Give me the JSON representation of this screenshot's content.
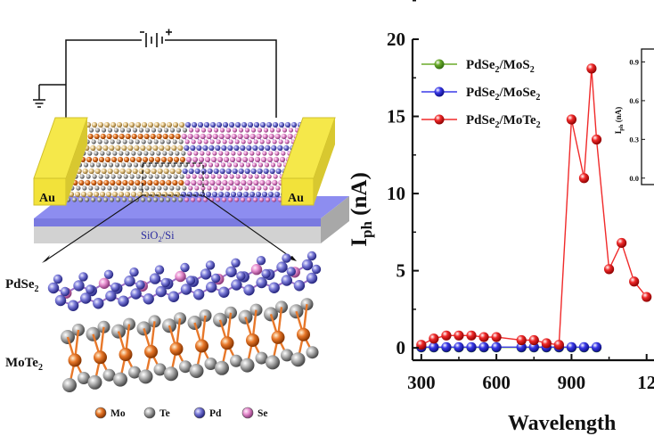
{
  "schematic": {
    "electrode_left": "Au",
    "electrode_right": "Au",
    "substrate": "SiO",
    "substrate_sub": "2",
    "substrate_tail": "/Si",
    "top_layer_label": "PdSe",
    "top_layer_sub": "2",
    "bottom_layer_label": "MoTe",
    "bottom_layer_sub": "2",
    "atom_legend": [
      {
        "symbol": "Mo",
        "color": "#e8782a"
      },
      {
        "symbol": "Te",
        "color": "#a8a8a8"
      },
      {
        "symbol": "Pd",
        "color": "#7a7ad8"
      },
      {
        "symbol": "Se",
        "color": "#e890d0"
      }
    ]
  },
  "chart_data": {
    "type": "line",
    "ylabel_main": "I",
    "ylabel_sub": "ph",
    "ylabel_unit": " (nA)",
    "xlabel": "Wavelength",
    "xlim": [
      265,
      1290
    ],
    "ylim": [
      -0.8,
      20
    ],
    "yticks": [
      "0",
      "5",
      "10",
      "15",
      "20"
    ],
    "xticks": [
      "300",
      "600",
      "900",
      "12"
    ],
    "series": [
      {
        "name_main": "PdSe",
        "name_sub1": "2",
        "name_mid": "/MoS",
        "name_sub2": "2",
        "color": "#6aaa2a",
        "dark": "#2f6b10",
        "x": [
          300,
          350,
          400,
          450,
          500,
          550,
          600,
          700,
          750,
          800,
          850,
          900,
          950,
          1000
        ],
        "y": [
          0.03,
          0.03,
          0.03,
          0.03,
          0.03,
          0.03,
          0.03,
          0.03,
          0.03,
          0.03,
          0.03,
          0.03,
          0.03,
          0.03
        ]
      },
      {
        "name_main": "PdSe",
        "name_sub1": "2",
        "name_mid": "/MoSe",
        "name_sub2": "2",
        "color": "#3a3ae8",
        "dark": "#0c0c80",
        "x": [
          300,
          350,
          400,
          450,
          500,
          550,
          600,
          700,
          750,
          800,
          850,
          900,
          950,
          1000
        ],
        "y": [
          0.05,
          0.05,
          0.05,
          0.05,
          0.05,
          0.05,
          0.05,
          0.05,
          0.05,
          0.05,
          0.05,
          0.05,
          0.05,
          0.05
        ]
      },
      {
        "name_main": "PdSe",
        "name_sub1": "2",
        "name_mid": "/MoTe",
        "name_sub2": "2",
        "color": "#f02a2a",
        "dark": "#8c0000",
        "x": [
          300,
          350,
          400,
          450,
          500,
          550,
          600,
          700,
          750,
          800,
          850,
          900,
          950,
          980,
          1000,
          1050,
          1100,
          1150,
          1200
        ],
        "y": [
          0.2,
          0.6,
          0.8,
          0.8,
          0.8,
          0.7,
          0.7,
          0.5,
          0.5,
          0.3,
          0.2,
          14.8,
          11.0,
          18.1,
          13.5,
          5.1,
          6.8,
          4.3,
          3.3
        ]
      }
    ],
    "inset": {
      "ylabel_main": "I",
      "ylabel_sub": "ph",
      "ylabel_unit": " (nA)",
      "ylim": [
        -0.05,
        1.0
      ],
      "yticks": [
        "0.0",
        "0.3",
        "0.6",
        "0.9"
      ]
    }
  }
}
